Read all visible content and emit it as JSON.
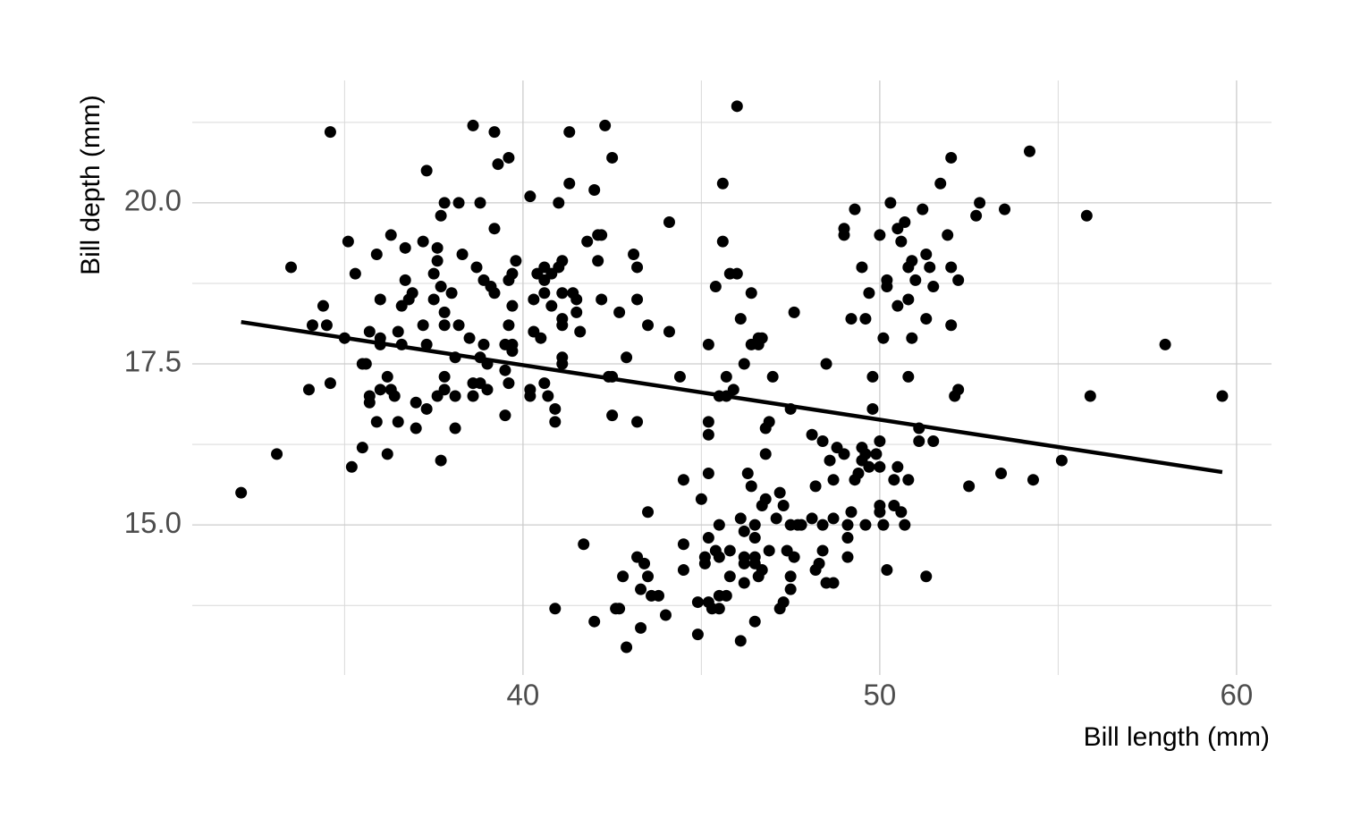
{
  "chart_data": {
    "type": "scatter",
    "x_label": "Bill length (mm)",
    "y_label": "Bill depth (mm)",
    "xlim": [
      30.73,
      60.98
    ],
    "ylim": [
      12.67,
      21.9
    ],
    "xticks": [
      40,
      50,
      60
    ],
    "yticks": [
      {
        "value": 15,
        "label": "15.0"
      },
      17.5,
      {
        "value": 20,
        "label": "20.0"
      }
    ],
    "xminor": [
      35,
      45,
      55
    ],
    "yminor": [
      13.75,
      16.25,
      18.75,
      21.25
    ],
    "grid": true,
    "color": "#000000",
    "x": [
      32.1,
      33.1,
      33.5,
      34.0,
      34.1,
      34.4,
      34.5,
      34.6,
      34.6,
      35.0,
      35.1,
      35.2,
      35.3,
      35.5,
      35.5,
      35.6,
      35.7,
      35.7,
      35.7,
      35.9,
      35.9,
      36.0,
      36.0,
      36.0,
      36.0,
      36.2,
      36.2,
      36.3,
      36.3,
      36.4,
      36.5,
      36.5,
      36.6,
      36.6,
      36.7,
      36.7,
      36.8,
      36.9,
      37.0,
      37.0,
      37.2,
      37.3,
      37.3,
      37.3,
      37.2,
      37.5,
      37.5,
      37.6,
      37.6,
      37.6,
      37.7,
      37.7,
      37.7,
      37.8,
      37.8,
      37.8,
      37.8,
      37.8,
      38.0,
      38.1,
      38.1,
      38.1,
      38.2,
      38.2,
      38.3,
      38.5,
      38.6,
      38.6,
      38.6,
      38.7,
      38.8,
      38.8,
      38.8,
      38.9,
      38.9,
      39.0,
      39.0,
      39.1,
      39.2,
      39.2,
      39.2,
      39.3,
      39.5,
      39.5,
      39.5,
      39.6,
      39.6,
      39.6,
      39.6,
      39.7,
      39.7,
      39.7,
      39.7,
      39.8,
      40.2,
      40.2,
      40.2,
      40.3,
      40.3,
      40.4,
      40.5,
      40.6,
      40.6,
      40.6,
      40.6,
      40.7,
      40.8,
      40.8,
      40.9,
      40.9,
      40.9,
      41.0,
      41.0,
      41.1,
      41.1,
      41.1,
      41.1,
      41.1,
      41.1,
      41.3,
      41.3,
      41.4,
      41.5,
      41.5,
      41.6,
      41.7,
      41.8,
      42.0,
      42.0,
      42.1,
      42.1,
      42.2,
      42.2,
      42.3,
      42.4,
      42.5,
      42.5,
      42.5,
      42.6,
      42.7,
      42.7,
      42.8,
      42.9,
      42.9,
      43.1,
      43.2,
      43.2,
      43.2,
      43.2,
      43.3,
      43.3,
      43.4,
      43.5,
      43.5,
      43.5,
      43.6,
      43.8,
      44.0,
      44.1,
      44.1,
      44.4,
      44.5,
      44.5,
      44.5,
      44.9,
      44.9,
      45.0,
      45.1,
      45.1,
      45.2,
      45.2,
      45.2,
      45.2,
      45.2,
      45.2,
      45.3,
      45.4,
      45.4,
      45.5,
      45.5,
      45.5,
      45.5,
      45.5,
      45.6,
      45.6,
      45.7,
      45.7,
      45.7,
      45.8,
      45.8,
      45.8,
      45.9,
      46.0,
      46.0,
      46.1,
      46.1,
      46.1,
      46.2,
      46.2,
      46.2,
      46.2,
      46.2,
      46.3,
      46.4,
      46.4,
      46.4,
      46.5,
      46.5,
      46.5,
      46.5,
      46.5,
      46.6,
      46.6,
      46.6,
      46.7,
      46.7,
      46.7,
      46.8,
      46.8,
      46.8,
      46.9,
      46.9,
      47.0,
      47.1,
      47.2,
      47.2,
      47.3,
      47.3,
      47.4,
      47.5,
      47.5,
      47.5,
      47.5,
      47.6,
      47.6,
      47.7,
      47.8,
      48.1,
      48.1,
      48.2,
      48.2,
      48.3,
      48.4,
      48.4,
      48.4,
      48.5,
      48.5,
      48.6,
      48.7,
      48.7,
      48.7,
      48.8,
      49.0,
      49.0,
      49.0,
      49.1,
      49.1,
      49.1,
      49.2,
      49.2,
      49.3,
      49.3,
      49.4,
      49.5,
      49.5,
      49.5,
      49.6,
      49.6,
      49.6,
      49.7,
      49.7,
      49.8,
      49.8,
      49.9,
      50.0,
      50.0,
      50.0,
      50.0,
      50.0,
      50.1,
      50.1,
      50.2,
      50.2,
      50.2,
      50.3,
      50.4,
      50.4,
      50.5,
      50.5,
      50.5,
      50.6,
      50.6,
      50.7,
      50.7,
      50.8,
      50.8,
      50.8,
      50.8,
      50.9,
      50.9,
      51.0,
      51.1,
      51.1,
      51.2,
      51.3,
      51.3,
      51.3,
      51.4,
      51.5,
      51.5,
      51.7,
      51.9,
      52.0,
      52.0,
      52.0,
      52.1,
      52.2,
      52.2,
      52.5,
      52.7,
      52.8,
      53.4,
      53.5,
      54.2,
      54.3,
      55.1,
      55.8,
      55.9,
      58.0,
      59.6
    ],
    "values": [
      15.5,
      16.1,
      19.0,
      17.1,
      18.1,
      18.4,
      18.1,
      21.1,
      17.2,
      17.9,
      19.4,
      15.9,
      18.9,
      16.2,
      17.5,
      17.5,
      18.0,
      16.9,
      17.0,
      16.6,
      19.2,
      17.9,
      17.8,
      18.5,
      17.1,
      16.1,
      17.3,
      19.5,
      17.1,
      17.0,
      18.0,
      16.6,
      18.4,
      17.8,
      19.3,
      18.8,
      18.5,
      18.6,
      16.9,
      16.5,
      19.4,
      20.5,
      16.8,
      17.8,
      18.1,
      18.5,
      18.9,
      19.3,
      19.1,
      17.0,
      16.0,
      19.8,
      18.7,
      20.0,
      18.3,
      18.1,
      17.3,
      17.1,
      18.6,
      17.0,
      17.6,
      16.5,
      18.1,
      20.0,
      19.2,
      17.9,
      21.2,
      17.2,
      17.0,
      19.0,
      20.0,
      17.2,
      17.6,
      18.8,
      17.8,
      17.5,
      17.1,
      18.7,
      21.1,
      19.6,
      18.6,
      20.6,
      16.7,
      17.4,
      17.8,
      20.7,
      18.8,
      18.1,
      17.2,
      17.8,
      17.7,
      18.4,
      18.9,
      19.1,
      17.1,
      17.0,
      20.1,
      18.5,
      18.0,
      18.9,
      17.9,
      18.6,
      18.8,
      19.0,
      17.2,
      17.0,
      18.9,
      18.4,
      16.8,
      16.6,
      13.7,
      20.0,
      19.0,
      19.1,
      18.6,
      18.2,
      18.1,
      17.6,
      17.5,
      21.1,
      20.3,
      18.6,
      18.5,
      18.3,
      18.0,
      14.7,
      19.4,
      20.2,
      13.5,
      19.5,
      19.1,
      19.5,
      18.5,
      21.2,
      17.3,
      20.7,
      17.3,
      16.7,
      13.7,
      18.3,
      13.7,
      14.2,
      17.6,
      13.1,
      19.2,
      19.0,
      18.5,
      16.6,
      14.5,
      14.0,
      13.4,
      14.4,
      14.2,
      15.2,
      18.1,
      13.9,
      13.9,
      13.6,
      19.7,
      18.0,
      17.3,
      15.7,
      14.7,
      14.3,
      13.3,
      13.8,
      15.4,
      14.4,
      14.5,
      17.8,
      16.6,
      16.4,
      15.8,
      14.8,
      13.8,
      13.7,
      14.6,
      18.7,
      13.7,
      14.5,
      15.0,
      13.9,
      17.0,
      20.3,
      19.4,
      17.3,
      17.0,
      13.9,
      18.9,
      14.2,
      14.6,
      17.1,
      21.5,
      18.9,
      13.2,
      15.1,
      18.2,
      14.5,
      17.5,
      14.1,
      14.4,
      14.9,
      15.8,
      15.6,
      18.6,
      17.8,
      15.0,
      14.4,
      14.5,
      13.5,
      14.8,
      17.9,
      17.8,
      14.2,
      17.9,
      15.3,
      14.3,
      15.4,
      16.5,
      16.1,
      16.6,
      14.6,
      17.3,
      15.1,
      13.7,
      15.5,
      13.8,
      15.3,
      14.6,
      16.8,
      14.2,
      14.0,
      15.0,
      14.5,
      18.3,
      15.0,
      15.0,
      15.1,
      16.4,
      15.6,
      14.3,
      14.4,
      16.3,
      14.6,
      15.0,
      17.5,
      14.1,
      16.0,
      15.7,
      14.1,
      15.1,
      16.2,
      16.1,
      19.6,
      19.5,
      14.5,
      15.0,
      14.8,
      15.2,
      18.2,
      19.9,
      15.7,
      15.8,
      19.0,
      16.2,
      16.0,
      18.2,
      15.0,
      16.1,
      18.6,
      15.9,
      17.3,
      16.8,
      16.1,
      15.2,
      15.3,
      19.5,
      16.3,
      15.9,
      17.9,
      15.0,
      18.8,
      18.7,
      14.3,
      20.0,
      15.3,
      15.7,
      18.4,
      19.6,
      15.9,
      19.4,
      15.2,
      19.7,
      15.0,
      19.0,
      18.5,
      17.3,
      15.7,
      19.1,
      17.9,
      18.8,
      16.5,
      16.3,
      19.9,
      18.2,
      14.2,
      19.2,
      19.0,
      18.7,
      16.3,
      20.3,
      19.5,
      20.7,
      19.0,
      18.1,
      17.0,
      17.1,
      18.8,
      15.6,
      19.8,
      20.0,
      15.8,
      19.9,
      20.8,
      15.7,
      16.0,
      19.8,
      17.0,
      17.8,
      17.0
    ],
    "trend": {
      "x": [
        32.1,
        59.6
      ],
      "values": [
        18.15,
        15.82
      ]
    }
  }
}
